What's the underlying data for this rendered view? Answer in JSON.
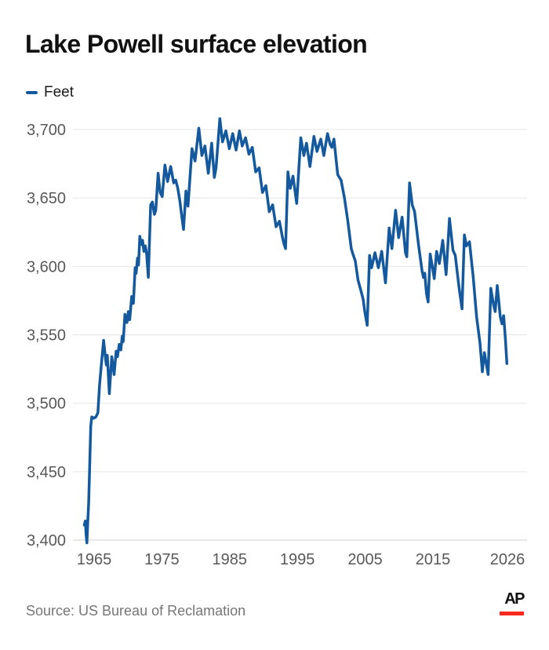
{
  "header": {
    "title": "Lake Powell surface elevation"
  },
  "legend": {
    "label": "Feet"
  },
  "colors": {
    "line": "#14599d",
    "grid": "#e4e4e4",
    "axis_line": "#cfcfcf",
    "tick_text": "#595959",
    "ap_red": "#f8291f"
  },
  "footer": {
    "source": "Source: US Bureau of Reclamation",
    "logo_text": "AP"
  },
  "chart_data": {
    "type": "line",
    "title": "Lake Powell surface elevation",
    "ylabel": "Feet",
    "unit": "feet",
    "grid": true,
    "legend_position": "top-left",
    "ylim": [
      3400,
      3700
    ],
    "xlim": [
      1962,
      2029
    ],
    "y_axis": {
      "tick_values": [
        3400,
        3450,
        3500,
        3550,
        3600,
        3650,
        3700
      ],
      "tick_labels": [
        "3,400",
        "3,450",
        "3,500",
        "3,550",
        "3,600",
        "3,650",
        "3,700"
      ]
    },
    "x_axis": {
      "tick_values": [
        1965,
        1975,
        1985,
        1995,
        2005,
        2015,
        2026
      ],
      "tick_labels": [
        "1965",
        "1975",
        "1985",
        "1995",
        "2005",
        "2015",
        "2026"
      ]
    },
    "series": [
      {
        "name": "Feet",
        "points": [
          [
            1963.55,
            3411
          ],
          [
            1963.7,
            3414
          ],
          [
            1963.82,
            3404
          ],
          [
            1963.93,
            3398
          ],
          [
            1964.05,
            3412
          ],
          [
            1964.2,
            3428
          ],
          [
            1964.35,
            3455
          ],
          [
            1964.5,
            3483
          ],
          [
            1964.65,
            3490
          ],
          [
            1964.95,
            3489
          ],
          [
            1965.25,
            3490
          ],
          [
            1965.55,
            3493
          ],
          [
            1965.8,
            3513
          ],
          [
            1966.1,
            3530
          ],
          [
            1966.4,
            3546
          ],
          [
            1966.65,
            3534
          ],
          [
            1966.8,
            3528
          ],
          [
            1966.95,
            3535
          ],
          [
            1967.25,
            3507
          ],
          [
            1967.6,
            3534
          ],
          [
            1967.95,
            3521
          ],
          [
            1968.25,
            3538
          ],
          [
            1968.45,
            3534
          ],
          [
            1968.7,
            3543
          ],
          [
            1968.95,
            3539
          ],
          [
            1969.15,
            3549
          ],
          [
            1969.3,
            3545
          ],
          [
            1969.55,
            3565
          ],
          [
            1969.85,
            3559
          ],
          [
            1970.05,
            3567
          ],
          [
            1970.25,
            3561
          ],
          [
            1970.55,
            3578
          ],
          [
            1970.8,
            3573
          ],
          [
            1971.05,
            3599
          ],
          [
            1971.2,
            3595
          ],
          [
            1971.4,
            3606
          ],
          [
            1971.55,
            3601
          ],
          [
            1971.75,
            3622
          ],
          [
            1971.95,
            3616
          ],
          [
            1972.15,
            3619
          ],
          [
            1972.35,
            3611
          ],
          [
            1972.55,
            3615
          ],
          [
            1972.75,
            3609
          ],
          [
            1973.0,
            3592
          ],
          [
            1973.35,
            3645
          ],
          [
            1973.6,
            3647
          ],
          [
            1973.9,
            3638
          ],
          [
            1974.1,
            3641
          ],
          [
            1974.45,
            3668
          ],
          [
            1974.75,
            3654
          ],
          [
            1975.05,
            3651
          ],
          [
            1975.45,
            3674
          ],
          [
            1975.85,
            3662
          ],
          [
            1976.3,
            3673
          ],
          [
            1976.75,
            3661
          ],
          [
            1977.05,
            3663
          ],
          [
            1977.35,
            3657
          ],
          [
            1977.65,
            3648
          ],
          [
            1977.95,
            3636
          ],
          [
            1978.2,
            3627
          ],
          [
            1978.55,
            3655
          ],
          [
            1978.85,
            3644
          ],
          [
            1979.45,
            3686
          ],
          [
            1979.9,
            3677
          ],
          [
            1980.45,
            3701
          ],
          [
            1980.9,
            3681
          ],
          [
            1981.35,
            3688
          ],
          [
            1981.85,
            3668
          ],
          [
            1982.35,
            3690
          ],
          [
            1982.75,
            3665
          ],
          [
            1983.0,
            3672
          ],
          [
            1983.55,
            3708
          ],
          [
            1983.95,
            3691
          ],
          [
            1984.45,
            3699
          ],
          [
            1984.95,
            3686
          ],
          [
            1985.45,
            3697
          ],
          [
            1985.95,
            3685
          ],
          [
            1986.45,
            3699
          ],
          [
            1986.85,
            3688
          ],
          [
            1987.35,
            3694
          ],
          [
            1987.85,
            3682
          ],
          [
            1988.35,
            3687
          ],
          [
            1988.85,
            3669
          ],
          [
            1989.35,
            3672
          ],
          [
            1989.85,
            3654
          ],
          [
            1990.35,
            3659
          ],
          [
            1990.85,
            3640
          ],
          [
            1991.35,
            3645
          ],
          [
            1991.85,
            3629
          ],
          [
            1992.35,
            3633
          ],
          [
            1992.8,
            3621
          ],
          [
            1993.05,
            3616
          ],
          [
            1993.25,
            3613
          ],
          [
            1993.6,
            3669
          ],
          [
            1993.95,
            3657
          ],
          [
            1994.35,
            3666
          ],
          [
            1994.9,
            3646
          ],
          [
            1995.5,
            3694
          ],
          [
            1995.95,
            3681
          ],
          [
            1996.35,
            3690
          ],
          [
            1996.85,
            3673
          ],
          [
            1997.45,
            3695
          ],
          [
            1997.9,
            3684
          ],
          [
            1998.45,
            3693
          ],
          [
            1998.9,
            3681
          ],
          [
            1999.45,
            3697
          ],
          [
            1999.85,
            3689
          ],
          [
            2000.1,
            3687
          ],
          [
            2000.4,
            3693
          ],
          [
            2000.95,
            3667
          ],
          [
            2001.45,
            3663
          ],
          [
            2001.95,
            3650
          ],
          [
            2002.45,
            3633
          ],
          [
            2002.95,
            3613
          ],
          [
            2003.2,
            3609
          ],
          [
            2003.55,
            3604
          ],
          [
            2003.95,
            3590
          ],
          [
            2004.45,
            3581
          ],
          [
            2004.7,
            3576
          ],
          [
            2004.95,
            3567
          ],
          [
            2005.3,
            3557
          ],
          [
            2005.65,
            3608
          ],
          [
            2005.95,
            3599
          ],
          [
            2006.45,
            3610
          ],
          [
            2006.95,
            3599
          ],
          [
            2007.45,
            3611
          ],
          [
            2008.0,
            3588
          ],
          [
            2008.55,
            3628
          ],
          [
            2008.95,
            3613
          ],
          [
            2009.5,
            3641
          ],
          [
            2009.95,
            3621
          ],
          [
            2010.45,
            3636
          ],
          [
            2010.95,
            3610
          ],
          [
            2011.15,
            3607
          ],
          [
            2011.55,
            3661
          ],
          [
            2011.95,
            3645
          ],
          [
            2012.3,
            3640
          ],
          [
            2012.9,
            3615
          ],
          [
            2013.4,
            3597
          ],
          [
            2013.6,
            3592
          ],
          [
            2013.8,
            3595
          ],
          [
            2014.05,
            3580
          ],
          [
            2014.3,
            3574
          ],
          [
            2014.6,
            3609
          ],
          [
            2014.95,
            3599
          ],
          [
            2015.2,
            3591
          ],
          [
            2015.55,
            3611
          ],
          [
            2015.95,
            3602
          ],
          [
            2016.45,
            3619
          ],
          [
            2016.95,
            3594
          ],
          [
            2017.45,
            3635
          ],
          [
            2017.95,
            3612
          ],
          [
            2018.3,
            3608
          ],
          [
            2018.85,
            3585
          ],
          [
            2019.3,
            3569
          ],
          [
            2019.65,
            3623
          ],
          [
            2019.95,
            3615
          ],
          [
            2020.4,
            3618
          ],
          [
            2020.95,
            3592
          ],
          [
            2021.45,
            3563
          ],
          [
            2021.95,
            3544
          ],
          [
            2022.3,
            3523
          ],
          [
            2022.6,
            3537
          ],
          [
            2022.95,
            3527
          ],
          [
            2023.15,
            3521
          ],
          [
            2023.55,
            3584
          ],
          [
            2023.95,
            3572
          ],
          [
            2024.2,
            3567
          ],
          [
            2024.5,
            3586
          ],
          [
            2024.95,
            3563
          ],
          [
            2025.2,
            3558
          ],
          [
            2025.45,
            3564
          ],
          [
            2025.7,
            3547
          ],
          [
            2025.92,
            3529
          ]
        ]
      }
    ]
  }
}
